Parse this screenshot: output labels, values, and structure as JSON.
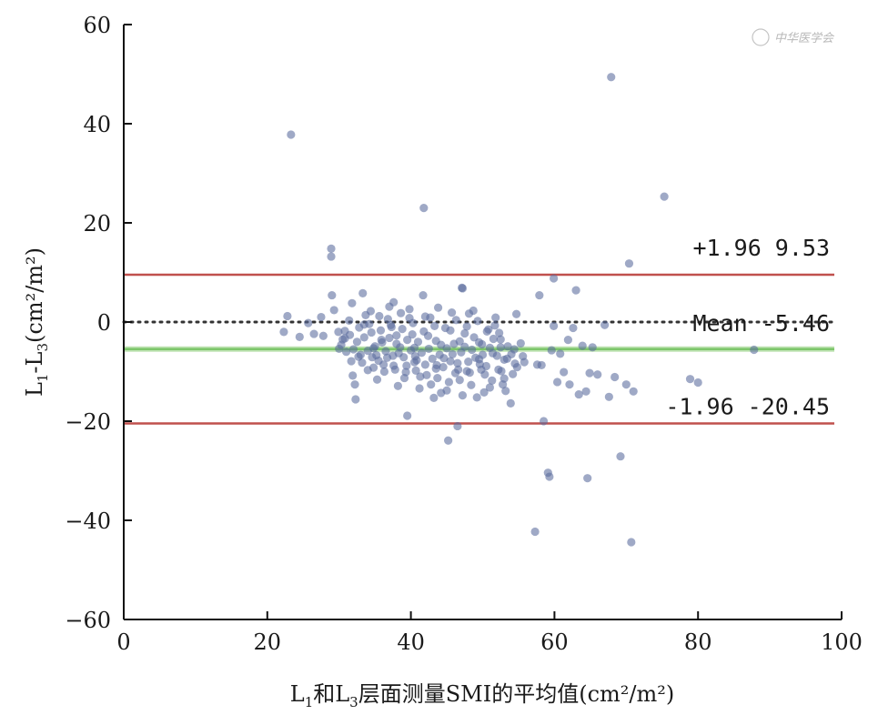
{
  "chart_data": {
    "type": "scatter",
    "title": "",
    "xlabel_parts": [
      "L",
      "1",
      "和L",
      "3",
      "层面测量SMI的平均值(cm²/m²)"
    ],
    "ylabel_parts": [
      "L",
      "1",
      "-L",
      "3",
      "(cm²/m²)"
    ],
    "xlim": [
      0,
      100
    ],
    "ylim": [
      -60,
      60
    ],
    "x_ticks": [
      0,
      20,
      40,
      60,
      80,
      100
    ],
    "y_ticks": [
      -60,
      -40,
      -20,
      0,
      20,
      40,
      60
    ],
    "x_tick_labels": [
      "0",
      "20",
      "40",
      "60",
      "80",
      "100"
    ],
    "y_tick_labels": [
      "−60",
      "−40",
      "−20",
      "0",
      "20",
      "40",
      "60"
    ],
    "grid": false,
    "reference_lines": [
      {
        "name": "upper",
        "y": 9.53,
        "label": "+1.96 9.53",
        "color": "#c0504d",
        "style": "solid"
      },
      {
        "name": "zero",
        "y": 0,
        "label": "Mean -5.46",
        "color": "#333333",
        "style": "dotted"
      },
      {
        "name": "mean",
        "y": -5.46,
        "label": "",
        "color": "#7cc66a",
        "style": "solid"
      },
      {
        "name": "lower",
        "y": -20.45,
        "label": "-1.96 -20.45",
        "color": "#c0504d",
        "style": "solid"
      }
    ],
    "point_color": "#5a6a9c",
    "points": [
      [
        23.3,
        37.8
      ],
      [
        41.8,
        23
      ],
      [
        67.9,
        49.4
      ],
      [
        75.3,
        25.3
      ],
      [
        70.4,
        11.8
      ],
      [
        28.9,
        14.8
      ],
      [
        28.9,
        13.2
      ],
      [
        59.9,
        8.8
      ],
      [
        47.2,
        6.8
      ],
      [
        22.8,
        1.2
      ],
      [
        22.3,
        -2
      ],
      [
        24.5,
        -3
      ],
      [
        25.7,
        -0.2
      ],
      [
        26.5,
        -2.4
      ],
      [
        27.5,
        1
      ],
      [
        27.8,
        -2.8
      ],
      [
        29,
        5.4
      ],
      [
        29.3,
        2.4
      ],
      [
        29.9,
        -2
      ],
      [
        30.3,
        -4.6
      ],
      [
        30.8,
        -3.3
      ],
      [
        31.4,
        0.3
      ],
      [
        31.8,
        3.8
      ],
      [
        31.9,
        -10.8
      ],
      [
        32.2,
        -12.6
      ],
      [
        32.3,
        -15.6
      ],
      [
        32.7,
        -7
      ],
      [
        33.3,
        5.8
      ],
      [
        33.5,
        -0.5
      ],
      [
        34,
        -9.7
      ],
      [
        34.4,
        2.2
      ],
      [
        34.8,
        -5.3
      ],
      [
        35.2,
        -6.7
      ],
      [
        35.6,
        1.2
      ],
      [
        35.9,
        -3.6
      ],
      [
        36.3,
        -10
      ],
      [
        36.7,
        -7.2
      ],
      [
        37,
        3.1
      ],
      [
        37.3,
        -1
      ],
      [
        37.6,
        4
      ],
      [
        38,
        -4.4
      ],
      [
        38.3,
        -6.3
      ],
      [
        38.6,
        1.8
      ],
      [
        39.1,
        -11.3
      ],
      [
        39.4,
        -8.8
      ],
      [
        39.5,
        -18.9
      ],
      [
        39.8,
        0.8
      ],
      [
        40.2,
        -2.5
      ],
      [
        40.5,
        -5.2
      ],
      [
        40.8,
        -7.7
      ],
      [
        41.3,
        -11
      ],
      [
        41.7,
        5.4
      ],
      [
        42,
        1.1
      ],
      [
        42.4,
        -2.8
      ],
      [
        42.8,
        -12.6
      ],
      [
        43.2,
        -15.3
      ],
      [
        43.5,
        -9.4
      ],
      [
        43.8,
        2.9
      ],
      [
        44.2,
        -4.6
      ],
      [
        44.6,
        -7.3
      ],
      [
        45,
        -13.8
      ],
      [
        45.2,
        -23.9
      ],
      [
        45.5,
        -1.7
      ],
      [
        45.8,
        -6.5
      ],
      [
        46.2,
        -10.3
      ],
      [
        46.5,
        -21
      ],
      [
        46.8,
        -3.9
      ],
      [
        47.1,
        6.9
      ],
      [
        47.5,
        -5
      ],
      [
        47.8,
        -9.9
      ],
      [
        48.1,
        1.7
      ],
      [
        48.4,
        -12.7
      ],
      [
        48.8,
        -3.1
      ],
      [
        49.2,
        -15.2
      ],
      [
        49.5,
        -7.5
      ],
      [
        49.9,
        -4.5
      ],
      [
        50.3,
        -10.6
      ],
      [
        50.6,
        -1.9
      ],
      [
        51,
        -13.2
      ],
      [
        51.4,
        -6.3
      ],
      [
        51.8,
        0.9
      ],
      [
        52.2,
        -9.6
      ],
      [
        52.5,
        -3.5
      ],
      [
        53,
        -11.4
      ],
      [
        53.4,
        -7.4
      ],
      [
        53.9,
        -16.4
      ],
      [
        54.4,
        -5.5
      ],
      [
        54.8,
        -9.1
      ],
      [
        55.3,
        -4.3
      ],
      [
        55.8,
        -8.1
      ],
      [
        57.3,
        -42.3
      ],
      [
        57.6,
        -8.6
      ],
      [
        57.9,
        5.4
      ],
      [
        58.2,
        -8.7
      ],
      [
        58.5,
        -20
      ],
      [
        59.1,
        -30.4
      ],
      [
        59.3,
        -31.2
      ],
      [
        59.6,
        -5.7
      ],
      [
        59.9,
        -0.8
      ],
      [
        60.4,
        -12.1
      ],
      [
        60.8,
        -6.4
      ],
      [
        61.3,
        -10.1
      ],
      [
        61.9,
        -3.6
      ],
      [
        62.1,
        -12.6
      ],
      [
        62.6,
        -1.2
      ],
      [
        63,
        6.4
      ],
      [
        63.4,
        -14.6
      ],
      [
        63.9,
        -4.8
      ],
      [
        64.4,
        -14
      ],
      [
        64.6,
        -31.5
      ],
      [
        64.9,
        -10.3
      ],
      [
        65.3,
        -5.1
      ],
      [
        66,
        -10.6
      ],
      [
        67,
        -0.6
      ],
      [
        67.6,
        -15.1
      ],
      [
        68.4,
        -11.1
      ],
      [
        69.2,
        -27.1
      ],
      [
        70,
        -12.6
      ],
      [
        70.7,
        -44.4
      ],
      [
        71,
        -14
      ],
      [
        78.9,
        -11.5
      ],
      [
        80,
        -12.2
      ],
      [
        87.8,
        -5.6
      ],
      [
        30,
        -5.4
      ],
      [
        30.5,
        -3.5
      ],
      [
        31,
        -6
      ],
      [
        31.5,
        -2.6
      ],
      [
        32,
        -5.5
      ],
      [
        32.5,
        -4
      ],
      [
        33,
        -6.6
      ],
      [
        33.5,
        -3.1
      ],
      [
        34,
        -5.8
      ],
      [
        34.5,
        -2.1
      ],
      [
        35,
        -4.9
      ],
      [
        35.5,
        -7.8
      ],
      [
        36,
        -4.1
      ],
      [
        36.5,
        -5.9
      ],
      [
        37,
        -3.2
      ],
      [
        37.5,
        -6.8
      ],
      [
        38,
        -2.7
      ],
      [
        38.5,
        -5.1
      ],
      [
        39,
        -7.1
      ],
      [
        39.5,
        -3.6
      ],
      [
        40,
        -5.7
      ],
      [
        40.5,
        -8.1
      ],
      [
        41,
        -4
      ],
      [
        41.5,
        -6.2
      ],
      [
        42,
        -8.6
      ],
      [
        42.5,
        -5.4
      ],
      [
        43,
        -7.4
      ],
      [
        43.5,
        -3.8
      ],
      [
        44,
        -6.6
      ],
      [
        44.5,
        -9.1
      ],
      [
        45,
        -5.3
      ],
      [
        45.5,
        -7.9
      ],
      [
        46,
        -4.4
      ],
      [
        46.5,
        -8.3
      ],
      [
        47,
        -6.1
      ],
      [
        47.5,
        -2.3
      ],
      [
        48,
        -8
      ],
      [
        48.5,
        -5.6
      ],
      [
        49,
        -7.2
      ],
      [
        49.5,
        -4.1
      ],
      [
        50,
        -6.6
      ],
      [
        50.5,
        -8.9
      ],
      [
        51,
        -5.2
      ],
      [
        51.5,
        -3.4
      ],
      [
        52,
        -6.8
      ],
      [
        52.5,
        -5.1
      ],
      [
        53,
        -7.6
      ],
      [
        53.5,
        -4.9
      ],
      [
        54,
        -6.5
      ],
      [
        54.5,
        -8.4
      ],
      [
        33.2,
        -8.2
      ],
      [
        34.8,
        -9.2
      ],
      [
        36.2,
        -8.6
      ],
      [
        37.8,
        -9.6
      ],
      [
        39.3,
        -10.1
      ],
      [
        40.7,
        -9.8
      ],
      [
        42.2,
        -10.7
      ],
      [
        43.7,
        -11.3
      ],
      [
        45.3,
        -12.1
      ],
      [
        46.8,
        -11.7
      ],
      [
        48.2,
        -10.2
      ],
      [
        49.8,
        -9.6
      ],
      [
        51.3,
        -11.8
      ],
      [
        52.8,
        -12.6
      ],
      [
        54.2,
        -10.5
      ],
      [
        32.8,
        -1.1
      ],
      [
        34.2,
        -0.4
      ],
      [
        35.8,
        -1.7
      ],
      [
        37.2,
        -0.6
      ],
      [
        38.8,
        -1.4
      ],
      [
        40.3,
        -0.2
      ],
      [
        41.8,
        -1.9
      ],
      [
        43.3,
        -0.8
      ],
      [
        44.8,
        -1.2
      ],
      [
        46.3,
        0.4
      ],
      [
        47.8,
        -0.9
      ],
      [
        49.3,
        0.2
      ],
      [
        50.8,
        -1.5
      ],
      [
        52.3,
        -2.2
      ],
      [
        30.8,
        -1.8
      ],
      [
        33.7,
        1.4
      ],
      [
        36.8,
        0.6
      ],
      [
        39.8,
        2.6
      ],
      [
        42.7,
        0.9
      ],
      [
        45.7,
        1.9
      ],
      [
        48.7,
        2.3
      ],
      [
        51.7,
        -0.7
      ],
      [
        54.7,
        1.6
      ],
      [
        35.3,
        -11.6
      ],
      [
        38.2,
        -12.9
      ],
      [
        41.2,
        -13.4
      ],
      [
        44.2,
        -14.3
      ],
      [
        47.2,
        -14.8
      ],
      [
        50.2,
        -14.2
      ],
      [
        53.2,
        -13.9
      ],
      [
        31.7,
        -7.9
      ],
      [
        34.6,
        -7.1
      ],
      [
        37.6,
        -8.8
      ],
      [
        40.6,
        -6.9
      ],
      [
        43.6,
        -8.7
      ],
      [
        46.6,
        -9.6
      ],
      [
        49.6,
        -8.5
      ],
      [
        52.6,
        -9.9
      ],
      [
        55.6,
        -6.9
      ]
    ]
  },
  "watermark": "中华医学会"
}
